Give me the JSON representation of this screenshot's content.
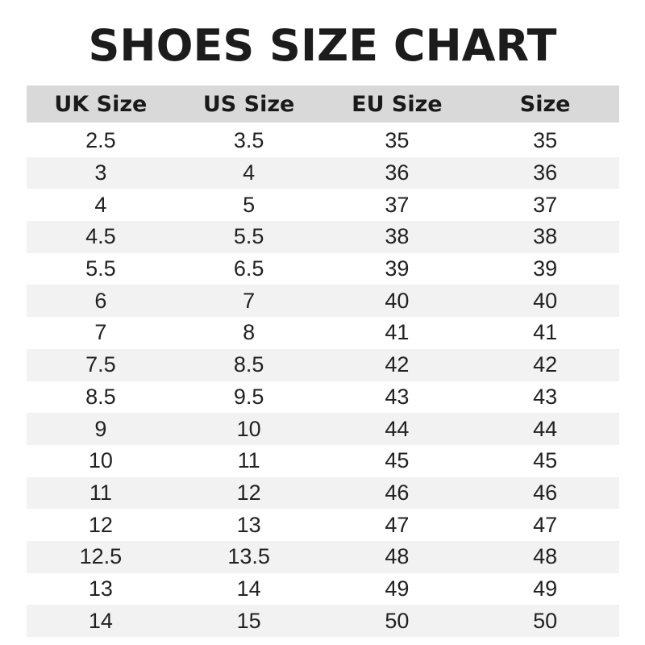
{
  "title": "SHOES SIZE CHART",
  "colors": {
    "header_bg": "#d9d9d9",
    "stripe_bg": "#f2f2f2",
    "text": "#1c1c1c"
  },
  "table": {
    "headers": [
      "UK Size",
      "US Size",
      "EU Size",
      "Size"
    ],
    "rows": [
      [
        "2.5",
        "3.5",
        "35",
        "35"
      ],
      [
        "3",
        "4",
        "36",
        "36"
      ],
      [
        "4",
        "5",
        "37",
        "37"
      ],
      [
        "4.5",
        "5.5",
        "38",
        "38"
      ],
      [
        "5.5",
        "6.5",
        "39",
        "39"
      ],
      [
        "6",
        "7",
        "40",
        "40"
      ],
      [
        "7",
        "8",
        "41",
        "41"
      ],
      [
        "7.5",
        "8.5",
        "42",
        "42"
      ],
      [
        "8.5",
        "9.5",
        "43",
        "43"
      ],
      [
        "9",
        "10",
        "44",
        "44"
      ],
      [
        "10",
        "11",
        "45",
        "45"
      ],
      [
        "11",
        "12",
        "46",
        "46"
      ],
      [
        "12",
        "13",
        "47",
        "47"
      ],
      [
        "12.5",
        "13.5",
        "48",
        "48"
      ],
      [
        "13",
        "14",
        "49",
        "49"
      ],
      [
        "14",
        "15",
        "50",
        "50"
      ]
    ]
  }
}
